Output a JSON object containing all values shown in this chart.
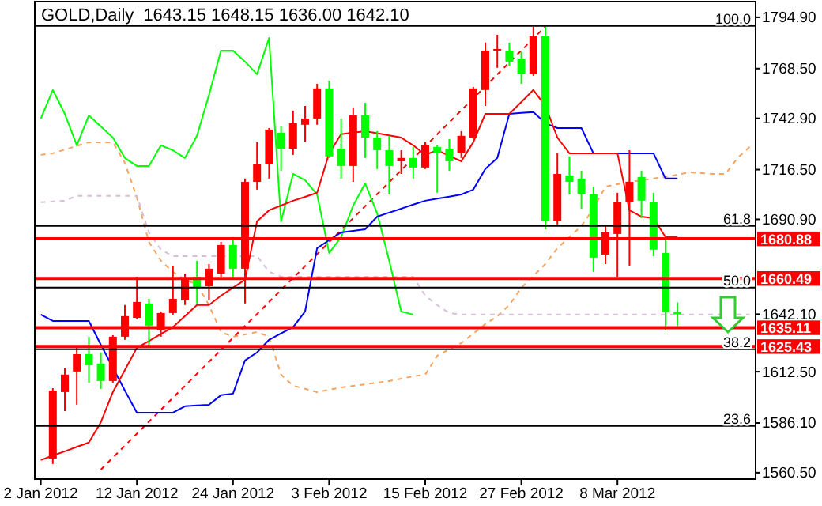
{
  "chart_data": {
    "type": "candlestick",
    "title": "GOLD,Daily",
    "subtitle": "1643.15 1648.15 1636.00 1642.10",
    "categories": [
      "2 Jan 2012",
      null,
      null,
      null,
      null,
      null,
      null,
      null,
      "12 Jan 2012",
      null,
      null,
      null,
      null,
      null,
      null,
      null,
      "24 Jan 2012",
      null,
      null,
      null,
      null,
      null,
      null,
      null,
      "3 Feb 2012",
      null,
      null,
      null,
      null,
      null,
      null,
      null,
      "15 Feb 2012",
      null,
      null,
      null,
      null,
      null,
      null,
      null,
      "27 Feb 2012",
      null,
      null,
      null,
      null,
      null,
      null,
      null,
      "8 Mar 2012",
      null,
      null,
      null,
      null,
      null,
      null,
      null,
      null,
      null,
      null,
      null
    ],
    "ohlc": [
      null,
      [
        1567.8,
        1604.0,
        1565.0,
        1602.8
      ],
      [
        1602.0,
        1614.2,
        1592.2,
        1611.0
      ],
      [
        1612.6,
        1624.8,
        1595.5,
        1621.5
      ],
      [
        1621.5,
        1630.5,
        1606.9,
        1615.8
      ],
      [
        1616.7,
        1622.4,
        1603.6,
        1607.7
      ],
      [
        1607.7,
        1631.3,
        1606.9,
        1630.5
      ],
      [
        1630.5,
        1646.8,
        1628.9,
        1641.1
      ],
      [
        1640.2,
        1661.4,
        1639.4,
        1648.4
      ],
      [
        1647.6,
        1650.0,
        1624.8,
        1636.2
      ],
      [
        1633.8,
        1643.5,
        1630.5,
        1642.7
      ],
      [
        1642.7,
        1667.1,
        1641.9,
        1650.0
      ],
      [
        1649.2,
        1663.0,
        1646.8,
        1660.6
      ],
      [
        1661.4,
        1669.6,
        1647.6,
        1655.7
      ],
      [
        1656.5,
        1667.9,
        1649.2,
        1665.5
      ],
      [
        1663.0,
        1679.3,
        1661.4,
        1677.7
      ],
      [
        1677.7,
        1681.8,
        1660.6,
        1665.5
      ],
      [
        1665.5,
        1711.9,
        1647.6,
        1710.2
      ],
      [
        1710.2,
        1730.6,
        1706.2,
        1719.2
      ],
      [
        1719.2,
        1737.9,
        1711.9,
        1737.1
      ],
      [
        1735.5,
        1738.7,
        1715.9,
        1727.3
      ],
      [
        1727.3,
        1746.9,
        1724.1,
        1740.4
      ],
      [
        1739.6,
        1749.3,
        1730.6,
        1742.8
      ],
      [
        1742.8,
        1760.7,
        1739.6,
        1758.3
      ],
      [
        1758.3,
        1762.3,
        1722.5,
        1723.3
      ],
      [
        1727.3,
        1742.8,
        1711.9,
        1718.4
      ],
      [
        1718.4,
        1748.5,
        1710.2,
        1744.4
      ],
      [
        1744.4,
        1750.9,
        1722.5,
        1733.0
      ],
      [
        1733.0,
        1736.3,
        1716.8,
        1726.5
      ],
      [
        1726.5,
        1733.9,
        1703.7,
        1718.4
      ],
      [
        1720.8,
        1726.5,
        1714.3,
        1722.5
      ],
      [
        1722.5,
        1728.2,
        1711.9,
        1717.6
      ],
      [
        1717.6,
        1730.6,
        1716.8,
        1729.0
      ],
      [
        1728.2,
        1729.0,
        1704.6,
        1724.9
      ],
      [
        1727.3,
        1732.2,
        1715.9,
        1720.8
      ],
      [
        1724.9,
        1736.3,
        1722.5,
        1733.9
      ],
      [
        1733.0,
        1759.1,
        1732.2,
        1758.3
      ],
      [
        1757.5,
        1781.9,
        1749.3,
        1777.8
      ],
      [
        1777.8,
        1785.9,
        1768.9,
        1778.6
      ],
      [
        1777.8,
        1781.9,
        1769.7,
        1772.1
      ],
      [
        1773.7,
        1777.0,
        1760.7,
        1765.6
      ],
      [
        1765.6,
        1790.0,
        1764.8,
        1785.1
      ],
      [
        1785.1,
        1790.5,
        1685.8,
        1689.9
      ],
      [
        1689.9,
        1724.9,
        1688.3,
        1714.3
      ],
      [
        1713.5,
        1723.3,
        1703.7,
        1710.2
      ],
      [
        1711.9,
        1715.9,
        1696.4,
        1703.7
      ],
      [
        1703.7,
        1707.8,
        1663.9,
        1671.2
      ],
      [
        1672.8,
        1687.5,
        1667.9,
        1684.2
      ],
      [
        1683.4,
        1704.6,
        1661.4,
        1699.7
      ],
      [
        1699.7,
        1726.5,
        1667.1,
        1710.2
      ],
      [
        1712.7,
        1715.9,
        1691.5,
        1700.5
      ],
      [
        1699.7,
        1704.6,
        1672.0,
        1675.3
      ],
      [
        1673.6,
        1681.8,
        1633.7,
        1643.2
      ],
      [
        1643.15,
        1648.15,
        1636.0,
        1642.1
      ],
      null,
      null,
      null,
      null,
      null,
      null
    ],
    "series": [
      {
        "type": "line",
        "color": "#f4a460",
        "line_style": "dashed",
        "values": [
          1724.1,
          1724.9,
          1726.8,
          1728.7,
          1730.6,
          1730.6,
          1730.6,
          1720.0,
          1702.1,
          1679.3,
          1669.6,
          1663.9,
          1659.8,
          1657.4,
          1646.8,
          1632.9,
          1630.5,
          1631.7,
          1632.9,
          1630.5,
          1611.0,
          1605.3,
          1603.7,
          1602.0,
          1603.2,
          1604.4,
          1605.2,
          1606.0,
          1606.9,
          1607.7,
          1608.9,
          1610.1,
          1611.0,
          1620.7,
          1624.0,
          1627.2,
          1632.1,
          1637.0,
          1641.1,
          1646.8,
          1655.7,
          1661.8,
          1667.9,
          1676.1,
          1681.8,
          1687.5,
          1696.4,
          1707.8,
          1709.0,
          1710.2,
          1711.0,
          1711.9,
          1712.7,
          1713.9,
          1715.1,
          1714.7,
          1714.3,
          1714.3,
          1722.5,
          1728.2
        ]
      },
      {
        "type": "line",
        "color": "#d8bfd8",
        "line_style": "dashed",
        "values": [
          1699.7,
          1700.1,
          1700.5,
          1703.0,
          1703.0,
          1703.0,
          1703.0,
          1703.0,
          1703.0,
          1684.2,
          1675.3,
          1672.0,
          1672.0,
          1672.0,
          1672.0,
          1672.0,
          1672.0,
          1672.0,
          1672.0,
          1663.9,
          1661.4,
          1661.4,
          1661.4,
          1661.4,
          1661.4,
          1661.4,
          1661.4,
          1661.4,
          1661.4,
          1661.4,
          1661.4,
          1661.4,
          1651.6,
          1646.8,
          1642.7,
          1641.9,
          1641.9,
          1641.9,
          1641.9,
          1641.9,
          1641.9,
          1641.9,
          1641.9,
          1641.9,
          1641.9,
          1641.9,
          1641.9,
          1641.9,
          1641.9,
          1641.9,
          1641.9,
          1641.9,
          1641.9,
          1641.9,
          1641.9,
          1641.9,
          1641.9,
          1641.9,
          1641.9,
          1641.9
        ]
      },
      {
        "type": "line",
        "color": "#ff0000",
        "line_style": "dashed",
        "values": [
          null,
          null,
          null,
          null,
          null,
          1562.1,
          1568.3,
          1574.4,
          1580.6,
          1586.8,
          1592.9,
          1599.1,
          1605.2,
          1611.4,
          1617.6,
          1623.7,
          1629.9,
          1636.1,
          1642.2,
          1648.4,
          1654.6,
          1660.7,
          1666.9,
          1673.0,
          1679.2,
          1685.4,
          1691.5,
          1697.7,
          1703.9,
          1710.0,
          1716.2,
          1722.3,
          1728.5,
          1734.7,
          1740.8,
          1747.0,
          1753.2,
          1759.3,
          1765.5,
          1771.7,
          1777.8,
          1784.0,
          1790.2,
          null,
          null,
          null,
          null,
          null,
          null,
          null,
          null,
          null,
          null,
          null,
          null,
          null,
          null,
          null,
          null,
          null
        ]
      },
      {
        "type": "line",
        "color": "#00ff00",
        "line_style": "solid",
        "values": [
          1742.8,
          1757.5,
          1745.2,
          1729.0,
          1744.4,
          1738.7,
          1733.0,
          1722.5,
          1718.4,
          1718.4,
          1729.0,
          1726.5,
          1722.5,
          1733.9,
          1755.0,
          1777.8,
          1777.8,
          1772.1,
          1765.6,
          1784.3,
          1689.9,
          1714.3,
          1711.1,
          1703.7,
          1673.6,
          1681.8,
          1698.0,
          1709.4,
          1694.0,
          1669.6,
          1643.5,
          1641.9,
          null,
          null,
          null,
          null,
          null,
          null,
          null,
          null,
          null,
          null,
          null,
          null,
          null,
          null,
          null,
          null,
          null,
          null,
          null,
          null,
          null,
          null,
          null,
          null,
          null,
          null,
          null,
          null
        ]
      },
      {
        "type": "line",
        "color": "#0000ff",
        "line_style": "solid",
        "values": [
          1641.9,
          1638.6,
          1638.6,
          1638.6,
          1638.6,
          1626.4,
          null,
          1602.8,
          1591.4,
          1591.4,
          1591.4,
          1591.4,
          1594.7,
          1595.1,
          1595.5,
          1600.4,
          1601.2,
          1618.3,
          1622.4,
          1628.9,
          1632.2,
          1635.4,
          1643.5,
          1676.1,
          1680.2,
          1684.2,
          1685.0,
          1685.8,
          1692.3,
          1694.4,
          1696.4,
          1698.5,
          1700.5,
          1701.6,
          1702.6,
          1703.7,
          1706.2,
          1716.8,
          1722.5,
          1745.2,
          1745.7,
          1746.1,
          1740.4,
          1737.9,
          1737.9,
          1737.9,
          1724.9,
          1724.9,
          1724.9,
          1724.9,
          1724.9,
          1724.9,
          1711.9,
          1711.9,
          null,
          null,
          null,
          null,
          null,
          null
        ]
      },
      {
        "type": "line",
        "color": "#ff0000",
        "line_style": "solid",
        "values": [
          1567.0,
          1569.3,
          1571.5,
          1573.8,
          1576.0,
          1586.5,
          1602.0,
          1613.4,
          1624.8,
          1628.3,
          1631.9,
          1635.4,
          1641.1,
          1646.8,
          1646.8,
          1651.6,
          1655.7,
          1659.8,
          1689.9,
          1695.6,
          1698.0,
          1700.5,
          1702.5,
          1704.6,
          1724.9,
          1734.7,
          1735.5,
          1736.3,
          1735.2,
          1734.1,
          1733.0,
          1729.0,
          1724.1,
          1726.5,
          1723.6,
          1720.8,
          1730.6,
          1745.2,
          1745.2,
          1745.2,
          1751.3,
          1757.5,
          1749.3,
          1733.0,
          1724.9,
          1724.9,
          1724.9,
          1724.9,
          1724.9,
          1695.6,
          1692.3,
          1691.5,
          1681.8,
          1681.8,
          null,
          null,
          null,
          null,
          null,
          null
        ]
      }
    ],
    "ylim": [
      1557.2,
      1803.0
    ],
    "yticks": [
      {
        "value": 1560.5,
        "label": "1560.50"
      },
      {
        "value": 1586.1,
        "label": "1586.10"
      },
      {
        "value": 1612.5,
        "label": "1612.50"
      },
      {
        "value": 1642.1,
        "label": "1642.10"
      },
      {
        "value": 1690.9,
        "label": "1690.90"
      },
      {
        "value": 1716.5,
        "label": "1716.50"
      },
      {
        "value": 1742.9,
        "label": "1742.90"
      },
      {
        "value": 1768.5,
        "label": "1768.50"
      },
      {
        "value": 1794.9,
        "label": "1794.90"
      }
    ],
    "ref_lines": [
      {
        "axis": "y",
        "value": 1790.5,
        "color": "#000000"
      },
      {
        "axis": "y",
        "value": 1687.5,
        "color": "#000000"
      },
      {
        "axis": "y",
        "value": 1655.8,
        "color": "#000000"
      },
      {
        "axis": "y",
        "value": 1624.0,
        "color": "#000000"
      },
      {
        "axis": "y",
        "value": 1584.6,
        "color": "#000000"
      },
      {
        "axis": "y",
        "value": 1680.88,
        "label": "1680.88",
        "color": "#ff0000"
      },
      {
        "axis": "y",
        "value": 1660.49,
        "label": "1660.49",
        "color": "#ff0000"
      },
      {
        "axis": "y",
        "value": 1635.11,
        "label": "1635.11",
        "color": "#ff0000"
      },
      {
        "axis": "y",
        "value": 1625.43,
        "label": "1625.43",
        "color": "#ff0000"
      }
    ],
    "annotations": [
      {
        "text": "100.0",
        "y": 1790.5
      },
      {
        "text": "61.8",
        "y": 1687.5
      },
      {
        "text": "50.0",
        "y": 1655.8
      },
      {
        "text": "38.2",
        "y": 1624.0
      },
      {
        "text": "23.6",
        "y": 1584.6
      }
    ],
    "grid": false
  }
}
